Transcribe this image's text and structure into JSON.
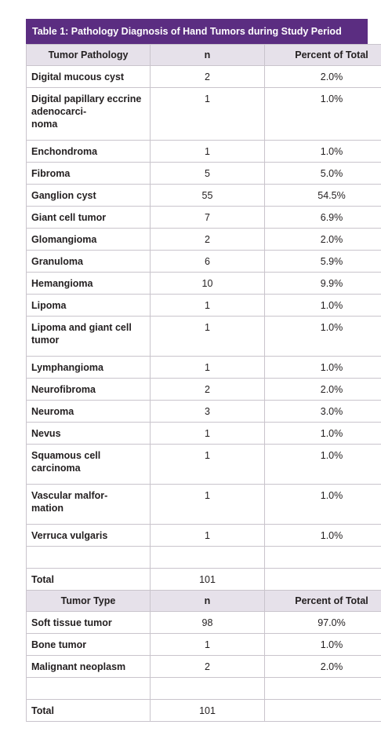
{
  "title": "Table 1: Pathology Diagnosis of Hand Tumors during Study Period",
  "header1": {
    "c1": "Tumor Pathology",
    "c2": "n",
    "c3": "Percent of Total"
  },
  "pathology_rows": [
    {
      "name": "Digital mucous cyst",
      "n": "2",
      "pct": "2.0%"
    },
    {
      "name": "Digital papillary eccrine adenocarci-noma",
      "n": "1",
      "pct": "1.0%"
    },
    {
      "name": "Enchondroma",
      "n": "1",
      "pct": "1.0%"
    },
    {
      "name": "Fibroma",
      "n": "5",
      "pct": "5.0%"
    },
    {
      "name": "Ganglion cyst",
      "n": "55",
      "pct": "54.5%"
    },
    {
      "name": "Giant cell tumor",
      "n": "7",
      "pct": "6.9%"
    },
    {
      "name": "Glomangioma",
      "n": "2",
      "pct": "2.0%"
    },
    {
      "name": "Granuloma",
      "n": "6",
      "pct": "5.9%"
    },
    {
      "name": "Hemangioma",
      "n": "10",
      "pct": "9.9%"
    },
    {
      "name": "Lipoma",
      "n": "1",
      "pct": "1.0%"
    },
    {
      "name": "Lipoma and giant cell tumor",
      "n": "1",
      "pct": "1.0%"
    },
    {
      "name": "Lymphangioma",
      "n": "1",
      "pct": "1.0%"
    },
    {
      "name": "Neurofibroma",
      "n": "2",
      "pct": "2.0%"
    },
    {
      "name": "Neuroma",
      "n": "3",
      "pct": "3.0%"
    },
    {
      "name": "Nevus",
      "n": "1",
      "pct": "1.0%"
    },
    {
      "name": "Squamous cell carcinoma",
      "n": "1",
      "pct": "1.0%"
    },
    {
      "name": "Vascular malfor-mation",
      "n": "1",
      "pct": "1.0%"
    },
    {
      "name": "Verruca vulgaris",
      "n": "1",
      "pct": "1.0%"
    }
  ],
  "total1": {
    "label": "Total",
    "n": "101"
  },
  "header2": {
    "c1": "Tumor Type",
    "c2": "n",
    "c3": "Percent of Total"
  },
  "type_rows": [
    {
      "name": "Soft tissue tumor",
      "n": "98",
      "pct": "97.0%"
    },
    {
      "name": "Bone tumor",
      "n": "1",
      "pct": "1.0%"
    },
    {
      "name": "Malignant neoplasm",
      "n": "2",
      "pct": "2.0%"
    }
  ],
  "total2": {
    "label": "Total",
    "n": "101"
  }
}
